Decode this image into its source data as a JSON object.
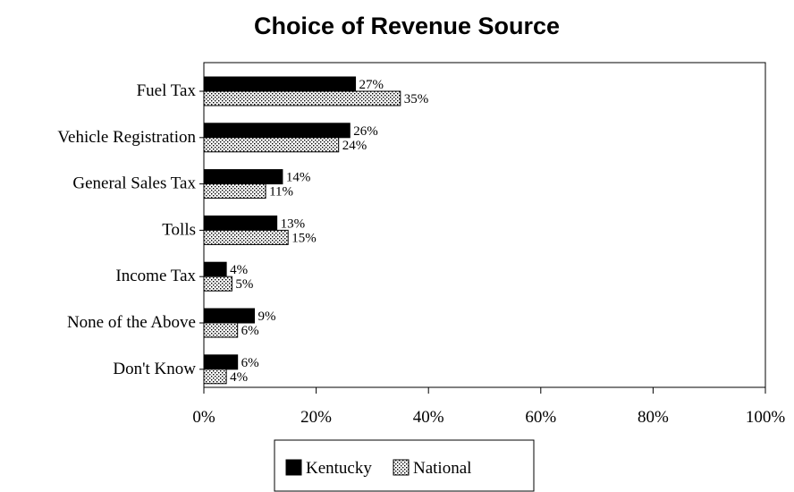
{
  "chart_data": {
    "type": "bar",
    "orientation": "horizontal",
    "title": "Choice of Revenue Source",
    "categories": [
      "Fuel Tax",
      "Vehicle Registration",
      "General Sales Tax",
      "Tolls",
      "Income Tax",
      "None of the Above",
      "Don't Know"
    ],
    "series": [
      {
        "name": "Kentucky",
        "values": [
          27,
          26,
          14,
          13,
          4,
          9,
          6
        ],
        "labels": [
          "27%",
          "26%",
          "14%",
          "13%",
          "4%",
          "9%",
          "6%"
        ],
        "color": "#000000",
        "pattern": "solid"
      },
      {
        "name": "National",
        "values": [
          35,
          24,
          11,
          15,
          5,
          6,
          4
        ],
        "labels": [
          "35%",
          "24%",
          "11%",
          "15%",
          "5%",
          "6%",
          "4%"
        ],
        "color": "#ffffff",
        "pattern": "stipple"
      }
    ],
    "xlim": [
      0,
      100
    ],
    "x_ticks": [
      "0%",
      "20%",
      "40%",
      "60%",
      "80%",
      "100%"
    ],
    "grid": false,
    "legend_position": "bottom"
  }
}
